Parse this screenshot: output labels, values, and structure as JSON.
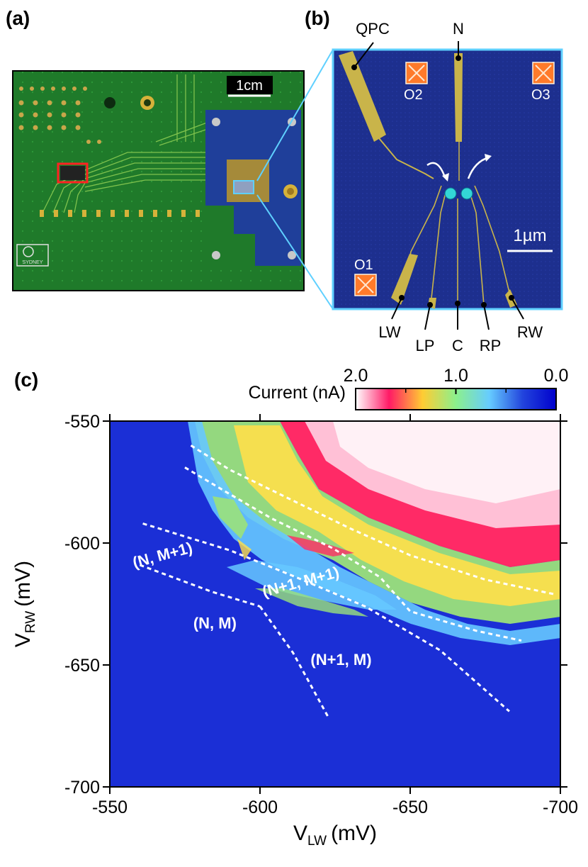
{
  "panels": {
    "a": {
      "label": "(a)",
      "scale_bar": "1cm",
      "logo_text": "SYDNEY"
    },
    "b": {
      "label": "(b)",
      "scale_bar": "1µm",
      "gate_labels": {
        "qpc": "QPC",
        "n": "N",
        "lw": "LW",
        "lp": "LP",
        "c": "C",
        "rp": "RP",
        "rw": "RW"
      },
      "ohmic_labels": {
        "o1": "O1",
        "o2": "O2",
        "o3": "O3"
      }
    },
    "c": {
      "label": "(c)"
    }
  },
  "colorbar": {
    "title": "Current (nA)",
    "ticks": [
      "2.0",
      "1.0",
      "0.0"
    ],
    "stops": [
      "#ffffff",
      "#ff1a66",
      "#ffcc33",
      "#8cf08c",
      "#66ccff",
      "#2244dd",
      "#0000cc"
    ]
  },
  "chart_data": {
    "type": "heatmap",
    "xlabel_main": "V",
    "xlabel_sub": "LW",
    "xlabel_unit": "(mV)",
    "ylabel_main": "V",
    "ylabel_sub": "RW",
    "ylabel_unit": "(mV)",
    "x_ticks": [
      "-550",
      "-600",
      "-650",
      "-700"
    ],
    "y_ticks": [
      "-550",
      "-600",
      "-650",
      "-700"
    ],
    "xlim": [
      -550,
      -700
    ],
    "ylim": [
      -700,
      -550
    ],
    "zlim": [
      0,
      2.0
    ],
    "colormap": "white-red-yellow-green-cyan-blue",
    "region_labels": [
      {
        "text": "(N, M+1)",
        "x": -568,
        "y": -607
      },
      {
        "text": "(N+1, M+1)",
        "x": -614,
        "y": -618
      },
      {
        "text": "(N, M)",
        "x": -585,
        "y": -635
      },
      {
        "text": "(N+1, M)",
        "x": -627,
        "y": -650
      }
    ],
    "dashed_lines": [
      [
        [
          -577,
          -560
        ],
        [
          -590,
          -570
        ],
        [
          -610,
          -582
        ],
        [
          -630,
          -594
        ],
        [
          -650,
          -605
        ],
        [
          -675,
          -615
        ],
        [
          -698,
          -621
        ]
      ],
      [
        [
          -575,
          -569
        ],
        [
          -590,
          -580
        ],
        [
          -604,
          -590
        ],
        [
          -624,
          -602
        ],
        [
          -640,
          -614
        ],
        [
          -650,
          -628
        ],
        [
          -672,
          -636
        ],
        [
          -687,
          -640
        ]
      ],
      [
        [
          -561,
          -592
        ],
        [
          -590,
          -603
        ],
        [
          -612,
          -614
        ],
        [
          -635,
          -626
        ],
        [
          -660,
          -644
        ],
        [
          -683,
          -669
        ]
      ],
      [
        [
          -560,
          -609
        ],
        [
          -584,
          -620
        ],
        [
          -600,
          -626
        ]
      ],
      [
        [
          -600,
          -626
        ],
        [
          -611,
          -645
        ],
        [
          -623,
          -672
        ]
      ]
    ]
  }
}
